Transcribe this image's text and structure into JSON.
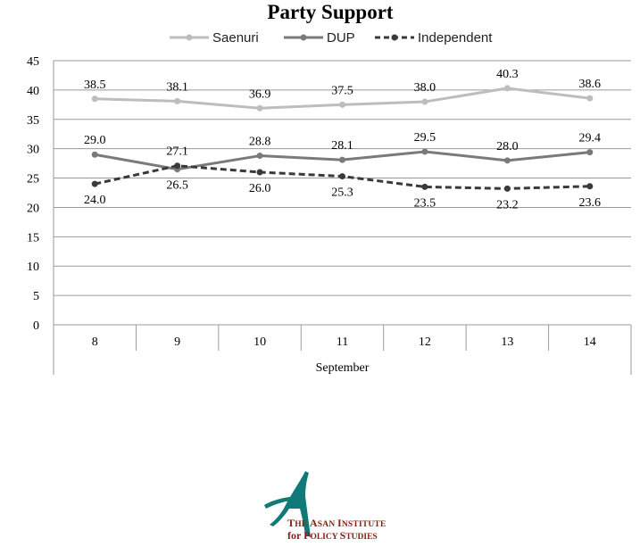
{
  "chart_data": {
    "type": "line",
    "title": "Party Support",
    "categories": [
      "8",
      "9",
      "10",
      "11",
      "12",
      "13",
      "14"
    ],
    "xlabel": "September",
    "ylabel": "",
    "ylim": [
      0,
      45
    ],
    "yticks": [
      "0",
      "5",
      "10",
      "15",
      "20",
      "25",
      "30",
      "35",
      "40",
      "45"
    ],
    "grid": true,
    "legend_position": "top",
    "series": [
      {
        "name": "Saenuri",
        "values": [
          38.5,
          38.1,
          36.9,
          37.5,
          38.0,
          40.3,
          38.6
        ],
        "labels": [
          "38.5",
          "38.1",
          "36.9",
          "37.5",
          "38.0",
          "40.3",
          "38.6"
        ],
        "color": "#bdbdbd",
        "dash": "solid",
        "label_pos": "above"
      },
      {
        "name": "DUP",
        "values": [
          29.0,
          26.5,
          28.8,
          28.1,
          29.5,
          28.0,
          29.4
        ],
        "labels": [
          "29.0",
          "26.5",
          "28.8",
          "28.1",
          "29.5",
          "28.0",
          "29.4"
        ],
        "color": "#7a7a7a",
        "dash": "solid",
        "label_pos": [
          "above",
          "below",
          "above",
          "above",
          "above",
          "above",
          "above"
        ]
      },
      {
        "name": "Independent",
        "values": [
          24.0,
          27.1,
          26.0,
          25.3,
          23.5,
          23.2,
          23.6
        ],
        "labels": [
          "24.0",
          "27.1",
          "26.0",
          "25.3",
          "23.5",
          "23.2",
          "23.6"
        ],
        "color": "#3a3a3a",
        "dash": "dashed",
        "label_pos": [
          "below",
          "above",
          "below",
          "below",
          "below",
          "below",
          "below"
        ]
      }
    ]
  },
  "logo": {
    "line1_first": "T",
    "line1_rest": "HE ",
    "line1_a": "A",
    "line1_b": "SAN ",
    "line1_i": "I",
    "line1_c": "NSTITUTE",
    "line2_a": "for ",
    "line2_p": "P",
    "line2_b": "OLICY ",
    "line2_s": "S",
    "line2_c": "TUDIES",
    "color": "#8a1c14",
    "mark_color": "#0f7a78"
  }
}
